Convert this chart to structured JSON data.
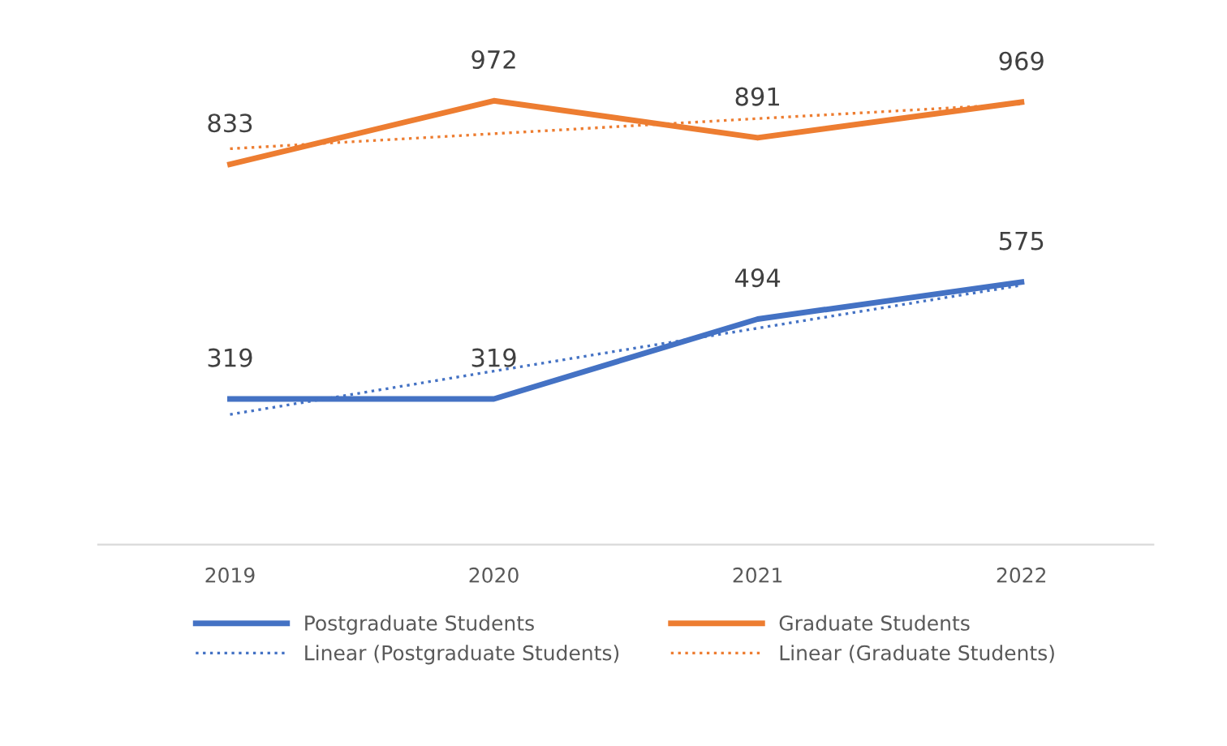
{
  "chart_data": {
    "type": "line",
    "categories": [
      "2019",
      "2020",
      "2021",
      "2022"
    ],
    "grid": false,
    "legend": "bottom",
    "marker": "none",
    "series": [
      {
        "name": "Postgraduate Students",
        "color": "#4472c4",
        "values": [
          319,
          319,
          494,
          575
        ],
        "value_labels": [
          "319",
          "319",
          "494",
          "575"
        ]
      },
      {
        "name": "Graduate Students",
        "color": "#ed7d31",
        "values": [
          833,
          972,
          891,
          969
        ],
        "value_labels": [
          "833",
          "972",
          "891",
          "969"
        ]
      },
      {
        "name": "Linear (Postgraduate Students)",
        "color": "#4472c4",
        "line_style": "dotted",
        "values": [
          285,
          380,
          474,
          568
        ]
      },
      {
        "name": "Linear (Graduate Students)",
        "color": "#ed7d31",
        "line_style": "dotted",
        "values": [
          867,
          900,
          933,
          965
        ]
      }
    ]
  }
}
